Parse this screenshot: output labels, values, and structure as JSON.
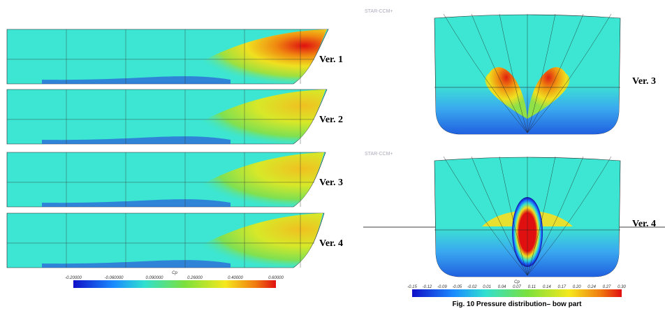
{
  "figure": {
    "left_panels": [
      {
        "label": "Ver. 1"
      },
      {
        "label": "Ver. 2"
      },
      {
        "label": "Ver. 3"
      },
      {
        "label": "Ver. 4"
      }
    ],
    "right_panels": [
      {
        "label": "Ver. 3"
      },
      {
        "label": "Ver. 4"
      }
    ],
    "logo": "STAR-CCM+",
    "colorbars": [
      {
        "title": "Cp",
        "ticks": [
          "-0.20000",
          "-0.060000",
          "0.090000",
          "0.26000",
          "0.40000",
          "0.60000"
        ]
      },
      {
        "title": "Cp",
        "ticks": [
          "-0.15",
          "-0.12",
          "-0.09",
          "-0.05",
          "-0.02",
          "0.01",
          "0.04",
          "0.07",
          "0.11",
          "0.14",
          "0.17",
          "0.20",
          "0.24",
          "0.27",
          "0.30"
        ]
      }
    ],
    "caption": "Fig. 10 Pressure distribution– bow part"
  }
}
